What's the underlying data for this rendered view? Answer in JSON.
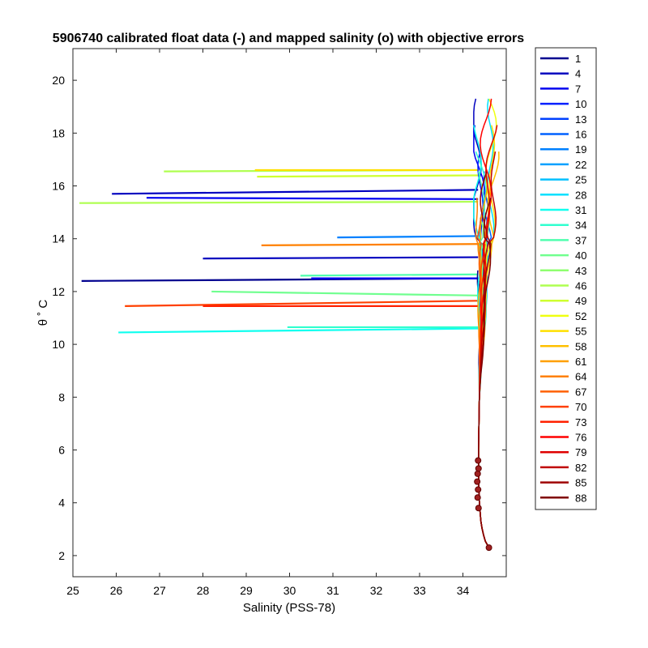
{
  "chart_data": {
    "type": "line",
    "title": "5906740 calibrated float data (-) and mapped salinity (o) with objective errors",
    "xlabel": "Salinity (PSS-78)",
    "ylabel": "θ ˚ C",
    "xlim": [
      25,
      35
    ],
    "ylim": [
      1.2,
      21.2
    ],
    "xticks": [
      25,
      26,
      27,
      28,
      29,
      30,
      31,
      32,
      33,
      34
    ],
    "yticks": [
      2,
      4,
      6,
      8,
      10,
      12,
      14,
      16,
      18,
      20
    ],
    "grid": false,
    "legend_position": "outside-right",
    "legend_entries": [
      "1",
      "4",
      "7",
      "10",
      "13",
      "16",
      "19",
      "22",
      "25",
      "28",
      "31",
      "34",
      "37",
      "40",
      "43",
      "46",
      "49",
      "52",
      "55",
      "58",
      "61",
      "64",
      "67",
      "70",
      "73",
      "76",
      "79",
      "82",
      "85",
      "88"
    ],
    "legend_colors": [
      "#00008f",
      "#0000bf",
      "#0000ef",
      "#0020ff",
      "#0040ff",
      "#0060ff",
      "#0080ff",
      "#00a0ff",
      "#00c0ff",
      "#00e0ff",
      "#10ffef",
      "#30ffcf",
      "#50ffaf",
      "#70ff8f",
      "#8fff70",
      "#afff50",
      "#cfff30",
      "#efff10",
      "#ffe000",
      "#ffc000",
      "#ffa000",
      "#ff8000",
      "#ff6000",
      "#ff4000",
      "#ff2000",
      "#ff0000",
      "#df0000",
      "#bf0000",
      "#9f0000",
      "#800000"
    ],
    "spikes": [
      {
        "profile": "1",
        "x_min": 25.2,
        "x_max": 34.35,
        "y_left": 12.4,
        "y_right": 12.5
      },
      {
        "profile": "4",
        "x_min": 25.9,
        "x_max": 34.35,
        "y_left": 15.7,
        "y_right": 15.85
      },
      {
        "profile": "4",
        "x_min": 28.0,
        "x_max": 34.35,
        "y_left": 13.25,
        "y_right": 13.3
      },
      {
        "profile": "7",
        "x_min": 26.7,
        "x_max": 34.35,
        "y_left": 15.55,
        "y_right": 15.5
      },
      {
        "profile": "7",
        "x_min": 30.5,
        "x_max": 34.35,
        "y_left": 12.5,
        "y_right": 12.5
      },
      {
        "profile": "19",
        "x_min": 31.1,
        "x_max": 34.35,
        "y_left": 14.05,
        "y_right": 14.1
      },
      {
        "profile": "31",
        "x_min": 26.05,
        "x_max": 34.35,
        "y_left": 10.45,
        "y_right": 10.6
      },
      {
        "profile": "34",
        "x_min": 29.95,
        "x_max": 34.35,
        "y_left": 10.65,
        "y_right": 10.65
      },
      {
        "profile": "37",
        "x_min": 30.25,
        "x_max": 34.35,
        "y_left": 12.6,
        "y_right": 12.65
      },
      {
        "profile": "40",
        "x_min": 28.2,
        "x_max": 34.35,
        "y_left": 12.0,
        "y_right": 11.85
      },
      {
        "profile": "46",
        "x_min": 25.15,
        "x_max": 34.35,
        "y_left": 15.35,
        "y_right": 15.4
      },
      {
        "profile": "46",
        "x_min": 27.1,
        "x_max": 34.35,
        "y_left": 16.55,
        "y_right": 16.6
      },
      {
        "profile": "49",
        "x_min": 29.25,
        "x_max": 34.35,
        "y_left": 16.35,
        "y_right": 16.4
      },
      {
        "profile": "55",
        "x_min": 29.2,
        "x_max": 34.35,
        "y_left": 16.6,
        "y_right": 16.6
      },
      {
        "profile": "64",
        "x_min": 29.35,
        "x_max": 34.35,
        "y_left": 13.75,
        "y_right": 13.8
      },
      {
        "profile": "70",
        "x_min": 26.2,
        "x_max": 34.35,
        "y_left": 11.45,
        "y_right": 11.65
      },
      {
        "profile": "73",
        "x_min": 28.0,
        "x_max": 34.35,
        "y_left": 11.45,
        "y_right": 11.45
      }
    ],
    "profile_trunk": [
      [
        34.6,
        2.3
      ],
      [
        34.5,
        2.6
      ],
      [
        34.42,
        3.2
      ],
      [
        34.38,
        4.0
      ],
      [
        34.36,
        5.0
      ],
      [
        34.36,
        6.0
      ],
      [
        34.37,
        7.0
      ],
      [
        34.38,
        8.0
      ],
      [
        34.4,
        9.0
      ],
      [
        34.42,
        10.0
      ],
      [
        34.44,
        11.0
      ],
      [
        34.46,
        12.0
      ],
      [
        34.48,
        13.0
      ],
      [
        34.5,
        14.0
      ]
    ],
    "mapped_salinity_points": [
      [
        34.6,
        2.3
      ],
      [
        34.36,
        3.8
      ],
      [
        34.34,
        4.2
      ],
      [
        34.35,
        4.5
      ],
      [
        34.33,
        4.8
      ],
      [
        34.34,
        5.1
      ],
      [
        34.36,
        5.3
      ],
      [
        34.35,
        5.6
      ]
    ]
  }
}
